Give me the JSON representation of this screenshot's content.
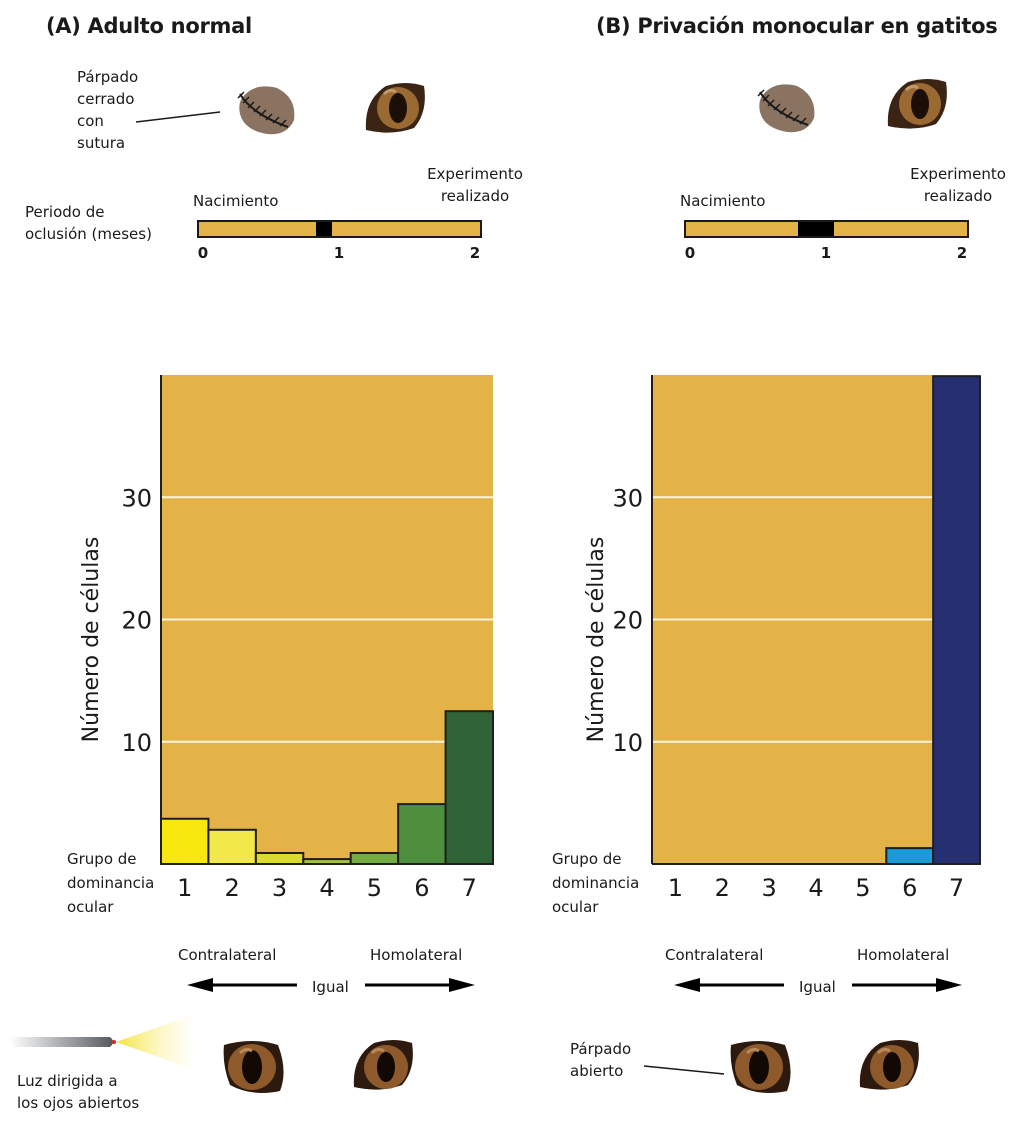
{
  "panels": [
    {
      "id": "A",
      "title": "(A) Adulto normal",
      "eyelid_label": [
        "Párpado",
        "cerrado",
        "con",
        "sutura"
      ],
      "occlusion_label": [
        "Periodo de",
        "oclusión (meses)"
      ],
      "birth_label": "Nacimiento",
      "experiment_label": [
        "Experimento",
        "realizado"
      ],
      "timeline": {
        "ticks": [
          "0",
          "1",
          "2"
        ],
        "occlusion_start_months": 0.83,
        "occlusion_end_months": 0.95
      },
      "direction": {
        "left": "Contralateral",
        "center": "Igual",
        "right": "Homolateral"
      },
      "bottom_label": [
        "Luz dirigida a",
        "los ojos abiertos"
      ]
    },
    {
      "id": "B",
      "title": "(B) Privación monocular en gatitos",
      "birth_label": "Nacimiento",
      "experiment_label": [
        "Experimento",
        "realizado"
      ],
      "timeline": {
        "ticks": [
          "0",
          "1",
          "2"
        ],
        "occlusion_start_months": 0.8,
        "occlusion_end_months": 1.05
      },
      "direction": {
        "left": "Contralateral",
        "center": "Igual",
        "right": "Homolateral"
      },
      "bottom_label": [
        "Párpado",
        "abierto"
      ]
    }
  ],
  "colors": {
    "plot_bg": "#e3b348",
    "timeline_fill": "#e3b348",
    "gridline": "#fff6dc"
  },
  "chart_data": [
    {
      "type": "bar",
      "title": "(A) Adulto normal",
      "xlabel": "Grupo de dominancia ocular",
      "ylabel": "Número de células",
      "categories": [
        "1",
        "2",
        "3",
        "4",
        "5",
        "6",
        "7"
      ],
      "values": [
        3.7,
        2.8,
        0.9,
        0.4,
        0.9,
        4.9,
        12.5
      ],
      "bar_colors": [
        "#f7e80f",
        "#f3e84a",
        "#d9dc2a",
        "#a5c23e",
        "#75ad42",
        "#4e8f3e",
        "#2f6536"
      ],
      "yticks": [
        10,
        20,
        30
      ],
      "ylim": [
        0,
        40
      ],
      "grid": true,
      "xlabel_lines": [
        "Grupo de",
        "dominancia",
        "ocular"
      ]
    },
    {
      "type": "bar",
      "title": "(B) Privación monocular en gatitos",
      "xlabel": "Grupo de dominancia ocular",
      "ylabel": "Número de células",
      "categories": [
        "1",
        "2",
        "3",
        "4",
        "5",
        "6",
        "7"
      ],
      "values": [
        0,
        0,
        0,
        0,
        0,
        1.3,
        39.9
      ],
      "bar_colors": [
        "#1a9ad7",
        "#1a9ad7",
        "#1a9ad7",
        "#1a9ad7",
        "#1a9ad7",
        "#1a9ad7",
        "#262f72"
      ],
      "yticks": [
        10,
        20,
        30
      ],
      "ylim": [
        0,
        40
      ],
      "grid": true,
      "xlabel_lines": [
        "Grupo de",
        "dominancia",
        "ocular"
      ]
    }
  ]
}
